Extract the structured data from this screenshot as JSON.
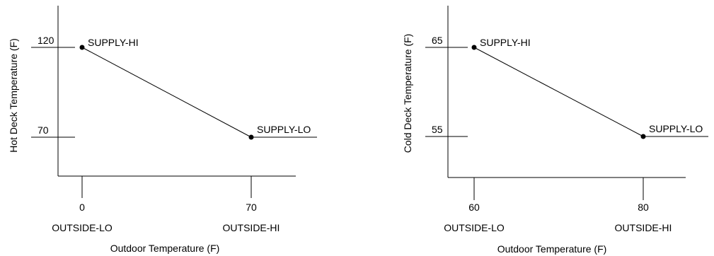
{
  "chart_data": [
    {
      "type": "line",
      "ylabel": "Hot Deck Temperature (F)",
      "xlabel": "Outdoor Temperature (F)",
      "x_ticks": [
        {
          "value": 0,
          "label": "0",
          "name": "OUTSIDE-LO"
        },
        {
          "value": 70,
          "label": "70",
          "name": "OUTSIDE-HI"
        }
      ],
      "y_ticks": [
        {
          "value": 120,
          "label": "120"
        },
        {
          "value": 70,
          "label": "70"
        }
      ],
      "points": [
        {
          "x": 0,
          "y": 120,
          "label": "SUPPLY-HI"
        },
        {
          "x": 70,
          "y": 70,
          "label": "SUPPLY-LO"
        }
      ],
      "grid": false
    },
    {
      "type": "line",
      "ylabel": "Cold  Deck Temperature (F)",
      "xlabel": "Outdoor Temperature (F)",
      "x_ticks": [
        {
          "value": 60,
          "label": "60",
          "name": "OUTSIDE-LO"
        },
        {
          "value": 80,
          "label": "80",
          "name": "OUTSIDE-HI"
        }
      ],
      "y_ticks": [
        {
          "value": 65,
          "label": "65"
        },
        {
          "value": 55,
          "label": "55"
        }
      ],
      "points": [
        {
          "x": 60,
          "y": 65,
          "label": "SUPPLY-HI"
        },
        {
          "x": 80,
          "y": 55,
          "label": "SUPPLY-LO"
        }
      ],
      "grid": false
    }
  ]
}
